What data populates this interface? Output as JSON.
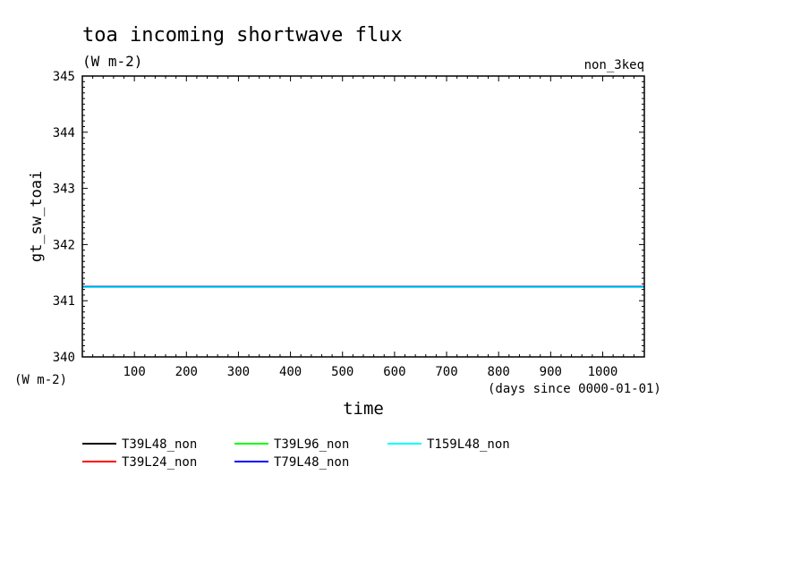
{
  "chart_data": {
    "type": "line",
    "title": "toa incoming shortwave flux",
    "units_label": "(W m-2)",
    "run_label": "non_3keq",
    "xlabel": "time",
    "x_units": "(days since 0000-01-01)",
    "ylabel": "gt_sw_toai",
    "y_units": "(W m-2)",
    "xlim": [
      0,
      1080
    ],
    "ylim": [
      340,
      345
    ],
    "x_ticks": [
      100,
      200,
      300,
      400,
      500,
      600,
      700,
      800,
      900,
      1000
    ],
    "y_ticks": [
      340,
      341,
      342,
      343,
      344,
      345
    ],
    "grid": false,
    "legend_position": "bottom",
    "series": [
      {
        "name": "T39L48_non",
        "color": "#000000",
        "x": [
          0,
          1080
        ],
        "y": [
          341.25,
          341.25
        ]
      },
      {
        "name": "T39L24_non",
        "color": "#ff0000",
        "x": [
          0,
          1080
        ],
        "y": [
          341.25,
          341.25
        ]
      },
      {
        "name": "T39L96_non",
        "color": "#00ff00",
        "x": [
          0,
          1080
        ],
        "y": [
          341.24,
          341.24
        ]
      },
      {
        "name": "T79L48_non",
        "color": "#0000ff",
        "x": [
          0,
          1080
        ],
        "y": [
          341.25,
          341.25
        ]
      },
      {
        "name": "T159L48_non",
        "color": "#00ffff",
        "x": [
          0,
          1080
        ],
        "y": [
          341.24,
          341.24
        ]
      }
    ]
  }
}
